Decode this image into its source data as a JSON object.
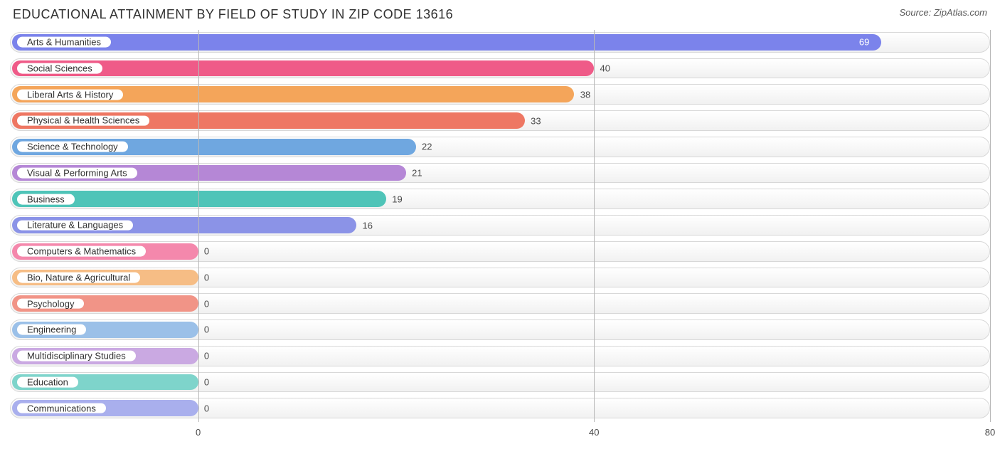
{
  "title": "EDUCATIONAL ATTAINMENT BY FIELD OF STUDY IN ZIP CODE 13616",
  "source": "Source: ZipAtlas.com",
  "chart": {
    "type": "bar-horizontal",
    "xlim": [
      0,
      80
    ],
    "xticks": [
      0,
      40,
      80
    ],
    "axis_origin_pct": 19.2,
    "background_color": "#ffffff",
    "track_border": "#d8d8d8",
    "track_fill_top": "#ffffff",
    "track_fill_bottom": "#f1f1f1",
    "grid_color": "#b8b8b8",
    "title_color": "#303030",
    "title_fontsize": 18,
    "label_fontsize": 13,
    "value_fontsize": 13,
    "tick_fontsize": 13,
    "rows": [
      {
        "label": "Arts & Humanities",
        "value": 69,
        "color": "#7b83eb",
        "value_inside": true
      },
      {
        "label": "Social Sciences",
        "value": 40,
        "color": "#ef5b88",
        "value_inside": false
      },
      {
        "label": "Liberal Arts & History",
        "value": 38,
        "color": "#f4a55a",
        "value_inside": false
      },
      {
        "label": "Physical & Health Sciences",
        "value": 33,
        "color": "#ee7763",
        "value_inside": false
      },
      {
        "label": "Science & Technology",
        "value": 22,
        "color": "#6fa7e0",
        "value_inside": false
      },
      {
        "label": "Visual & Performing Arts",
        "value": 21,
        "color": "#b587d6",
        "value_inside": false
      },
      {
        "label": "Business",
        "value": 19,
        "color": "#4fc4b8",
        "value_inside": false
      },
      {
        "label": "Literature & Languages",
        "value": 16,
        "color": "#8b93e7",
        "value_inside": false
      },
      {
        "label": "Computers & Mathematics",
        "value": 0,
        "color": "#f488ac",
        "value_inside": false
      },
      {
        "label": "Bio, Nature & Agricultural",
        "value": 0,
        "color": "#f6bd85",
        "value_inside": false
      },
      {
        "label": "Psychology",
        "value": 0,
        "color": "#f19487",
        "value_inside": false
      },
      {
        "label": "Engineering",
        "value": 0,
        "color": "#9bc0e8",
        "value_inside": false
      },
      {
        "label": "Multidisciplinary Studies",
        "value": 0,
        "color": "#caa9e2",
        "value_inside": false
      },
      {
        "label": "Education",
        "value": 0,
        "color": "#7ed4cb",
        "value_inside": false
      },
      {
        "label": "Communications",
        "value": 0,
        "color": "#a9afed",
        "value_inside": false
      }
    ]
  }
}
